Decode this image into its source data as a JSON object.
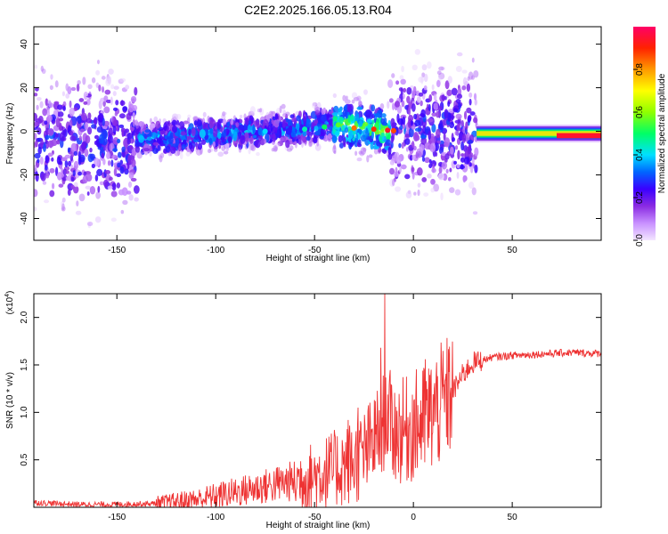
{
  "title": "C2E2.2025.166.05.13.R04",
  "chart_data": [
    {
      "type": "heatmap",
      "xlabel": "Height of straight line (km)",
      "ylabel": "Frequency (Hz)",
      "xlim": [
        -192,
        95
      ],
      "ylim": [
        -50,
        48
      ],
      "x_ticks": [
        -150,
        -100,
        -50,
        0,
        50
      ],
      "x_tick_labels": [
        "-150",
        "-100",
        "-50",
        "0",
        "50"
      ],
      "y_ticks": [
        -40,
        -20,
        0,
        20,
        40
      ],
      "y_tick_labels": [
        "-40",
        "-20",
        "0",
        "20",
        "40"
      ],
      "colorbar": {
        "label": "Normalized spectral amplitude",
        "range": [
          0,
          1
        ],
        "ticks": [
          0.0,
          0.2,
          0.4,
          0.6,
          0.8
        ],
        "tick_labels": [
          "0.0",
          "0.2",
          "0.4",
          "0.6",
          "0.8"
        ],
        "colormap": [
          "#f3e6ff",
          "#c890ff",
          "#8a2be2",
          "#3a00ff",
          "#0066ff",
          "#00e0ff",
          "#00ff66",
          "#90ff00",
          "#ffff00",
          "#ff9900",
          "#ff2200",
          "#ff0066"
        ]
      },
      "ridge": {
        "x": [
          -192,
          -140,
          -100,
          -60,
          -40,
          -30,
          -20,
          -10,
          0,
          30,
          60,
          95
        ],
        "y": [
          -5,
          -4,
          -1,
          1,
          4,
          2,
          1,
          0,
          0,
          -1,
          -1,
          -2
        ]
      },
      "bands": [
        {
          "x_range": [
            -192,
            -140
          ],
          "spread": 45,
          "intensity": 0.25
        },
        {
          "x_range": [
            -140,
            -40
          ],
          "spread": 12,
          "intensity": 0.35
        },
        {
          "x_range": [
            -40,
            -12
          ],
          "spread": 18,
          "intensity": 0.55
        },
        {
          "x_range": [
            -12,
            32
          ],
          "spread": 42,
          "intensity": 0.25
        },
        {
          "x_range": [
            32,
            95
          ],
          "spread": 4,
          "intensity": 0.75
        }
      ],
      "grid": false
    },
    {
      "type": "line",
      "xlabel": "Height of straight line (km)",
      "ylabel": "SNR (10 * v/v)",
      "y_multiplier": "(x10",
      "y_multiplier_exp": "4",
      "y_multiplier_close": ")",
      "xlim": [
        -192,
        95
      ],
      "ylim": [
        0,
        2.25
      ],
      "x_ticks": [
        -150,
        -100,
        -50,
        0,
        50
      ],
      "x_tick_labels": [
        "-150",
        "-100",
        "-50",
        "0",
        "50"
      ],
      "y_ticks": [
        0.5,
        1.0,
        1.5,
        2.0
      ],
      "y_tick_labels": [
        "0.5",
        "1.0",
        "1.5",
        "2.0"
      ],
      "series": [
        {
          "color": "#ee3333",
          "x": [
            -192,
            -170,
            -150,
            -130,
            -110,
            -100,
            -90,
            -80,
            -70,
            -60,
            -50,
            -40,
            -30,
            -25,
            -20,
            -17,
            -15,
            -14,
            -10,
            -5,
            0,
            5,
            10,
            15,
            20,
            25,
            30,
            40,
            50,
            60,
            70,
            80,
            95
          ],
          "y": [
            0.05,
            0.03,
            0.03,
            0.04,
            0.08,
            0.12,
            0.16,
            0.2,
            0.24,
            0.28,
            0.33,
            0.4,
            0.48,
            0.55,
            0.7,
            0.8,
            0.9,
            1.05,
            0.8,
            0.8,
            0.85,
            0.9,
            1.0,
            1.1,
            1.22,
            1.4,
            1.52,
            1.58,
            1.6,
            1.61,
            1.62,
            1.63,
            1.62
          ]
        }
      ],
      "spikes": [
        {
          "x": -14.5,
          "y": 2.25
        },
        {
          "x": -16.5,
          "y": 1.68
        },
        {
          "x": 6,
          "y": 1.56
        },
        {
          "x": -28,
          "y": 1.05
        },
        {
          "x": -33,
          "y": 0.92
        }
      ],
      "grid": false
    }
  ]
}
